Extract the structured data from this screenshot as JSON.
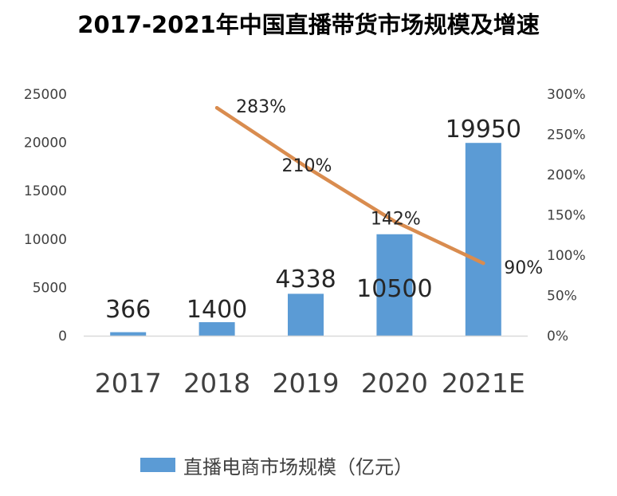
{
  "title": "2017-2021年中国直播带货市场规模及增速",
  "colors": {
    "bar": "#5b9bd5",
    "line": "#d98c4f",
    "axis": "#d9d9d9",
    "text": "#404040"
  },
  "chart_data": {
    "type": "bar",
    "categories": [
      "2017",
      "2018",
      "2019",
      "2020",
      "2021E"
    ],
    "series": [
      {
        "name": "直播电商市场规模（亿元）",
        "type": "bar",
        "axis": "left",
        "values": [
          366,
          1400,
          4338,
          10500,
          19950
        ],
        "labels": [
          "366",
          "1400",
          "4338",
          "10500",
          "19950"
        ]
      },
      {
        "type": "line",
        "axis": "right",
        "values": [
          null,
          283,
          210,
          142,
          90
        ],
        "labels": [
          "",
          "283%",
          "210%",
          "142%",
          "90%"
        ]
      }
    ],
    "ylim": [
      0,
      25000
    ],
    "yticks": [
      "0",
      "5000",
      "10000",
      "15000",
      "20000",
      "25000"
    ],
    "y2lim": [
      0,
      300
    ],
    "y2ticks": [
      "0%",
      "50%",
      "100%",
      "150%",
      "200%",
      "250%",
      "300%"
    ],
    "legend": "bottom",
    "grid": false
  }
}
